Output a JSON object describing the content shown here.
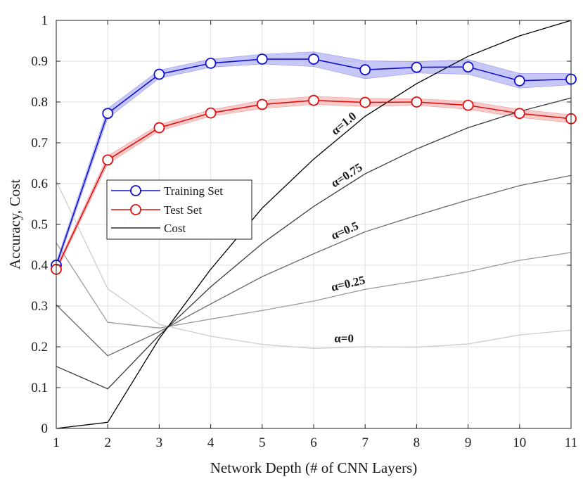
{
  "chart_data": {
    "type": "line",
    "title": "",
    "xlabel": "Network Depth (# of CNN Layers)",
    "ylabel": "Accuracy, Cost",
    "xlim": [
      1,
      11
    ],
    "ylim": [
      0,
      1
    ],
    "x": [
      1,
      2,
      3,
      4,
      5,
      6,
      7,
      8,
      9,
      10,
      11
    ],
    "x_ticks": [
      "1",
      "2",
      "3",
      "4",
      "5",
      "6",
      "7",
      "8",
      "9",
      "10",
      "11"
    ],
    "y_ticks": [
      "0",
      "0.1",
      "0.2",
      "0.3",
      "0.4",
      "0.5",
      "0.6",
      "0.7",
      "0.8",
      "0.9",
      "1"
    ],
    "grid": true,
    "legend_position": "left-middle",
    "series": [
      {
        "name": "Training Set",
        "role": "accuracy",
        "color": "#1010d0",
        "band_color": "#9a9af2",
        "marker": "circle",
        "values": [
          0.4,
          0.772,
          0.868,
          0.895,
          0.905,
          0.905,
          0.879,
          0.885,
          0.886,
          0.852,
          0.856
        ],
        "band": [
          0.008,
          0.012,
          0.01,
          0.01,
          0.012,
          0.018,
          0.022,
          0.014,
          0.018,
          0.018,
          0.014
        ]
      },
      {
        "name": "Test Set",
        "role": "accuracy",
        "color": "#e01010",
        "band_color": "#f2a0a0",
        "marker": "circle",
        "values": [
          0.39,
          0.658,
          0.737,
          0.773,
          0.794,
          0.804,
          0.799,
          0.8,
          0.792,
          0.772,
          0.759
        ],
        "band": [
          0.006,
          0.01,
          0.008,
          0.008,
          0.01,
          0.01,
          0.01,
          0.008,
          0.01,
          0.01,
          0.01
        ]
      }
    ],
    "cost_legend_label": "Cost",
    "cost_series": [
      {
        "alpha_label": "α=1.0",
        "color": "#000000",
        "values": [
          0.0,
          0.015,
          0.22,
          0.39,
          0.54,
          0.66,
          0.765,
          0.845,
          0.912,
          0.962,
          1.0
        ]
      },
      {
        "alpha_label": "α=0.75",
        "color": "#3a3a3a",
        "values": [
          0.152,
          0.097,
          0.228,
          0.347,
          0.453,
          0.544,
          0.624,
          0.685,
          0.737,
          0.777,
          0.81
        ]
      },
      {
        "alpha_label": "α=0.5",
        "color": "#6a6a6a",
        "values": [
          0.303,
          0.178,
          0.237,
          0.305,
          0.372,
          0.428,
          0.482,
          0.522,
          0.56,
          0.595,
          0.62
        ]
      },
      {
        "alpha_label": "α=0.25",
        "color": "#9a9a9a",
        "values": [
          0.455,
          0.26,
          0.246,
          0.268,
          0.289,
          0.312,
          0.341,
          0.361,
          0.384,
          0.412,
          0.431
        ]
      },
      {
        "alpha_label": "α=0",
        "color": "#cdcdcd",
        "values": [
          0.606,
          0.342,
          0.255,
          0.226,
          0.206,
          0.196,
          0.2,
          0.199,
          0.207,
          0.229,
          0.241
        ]
      }
    ]
  }
}
